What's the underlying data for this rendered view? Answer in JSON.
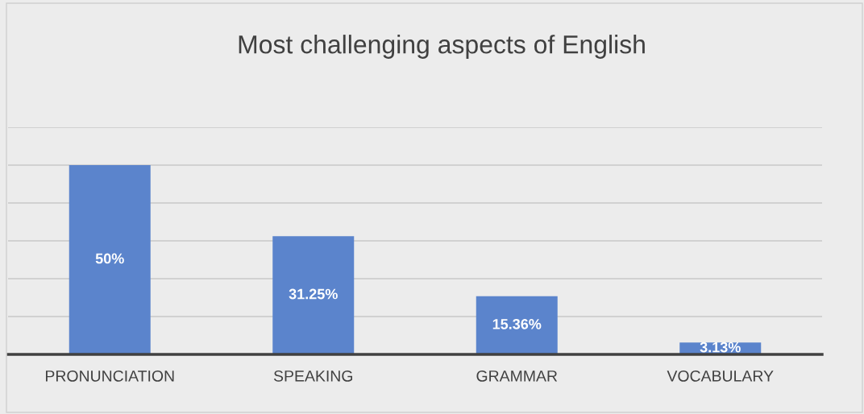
{
  "chart_data": {
    "type": "bar",
    "title": "Most challenging aspects of English",
    "categories": [
      "PRONUNCIATION",
      "SPEAKING",
      "GRAMMAR",
      "VOCABULARY"
    ],
    "values": [
      50,
      31.25,
      15.36,
      3.13
    ],
    "color": "#5b84cc",
    "value_labels": [
      "50%",
      "31.25%",
      "15.36%",
      "3.13%"
    ],
    "ylim": [
      0,
      60
    ],
    "yticks": [
      {
        "value": 0,
        "label": null
      },
      {
        "value": 10,
        "label": null
      },
      {
        "value": 20,
        "label": null
      },
      {
        "value": 30,
        "label": null
      },
      {
        "value": 40,
        "label": null
      },
      {
        "value": 50,
        "label": null
      },
      {
        "value": 60,
        "label": null
      }
    ],
    "tick_labels": "x",
    "grid": "y",
    "legend": false
  }
}
